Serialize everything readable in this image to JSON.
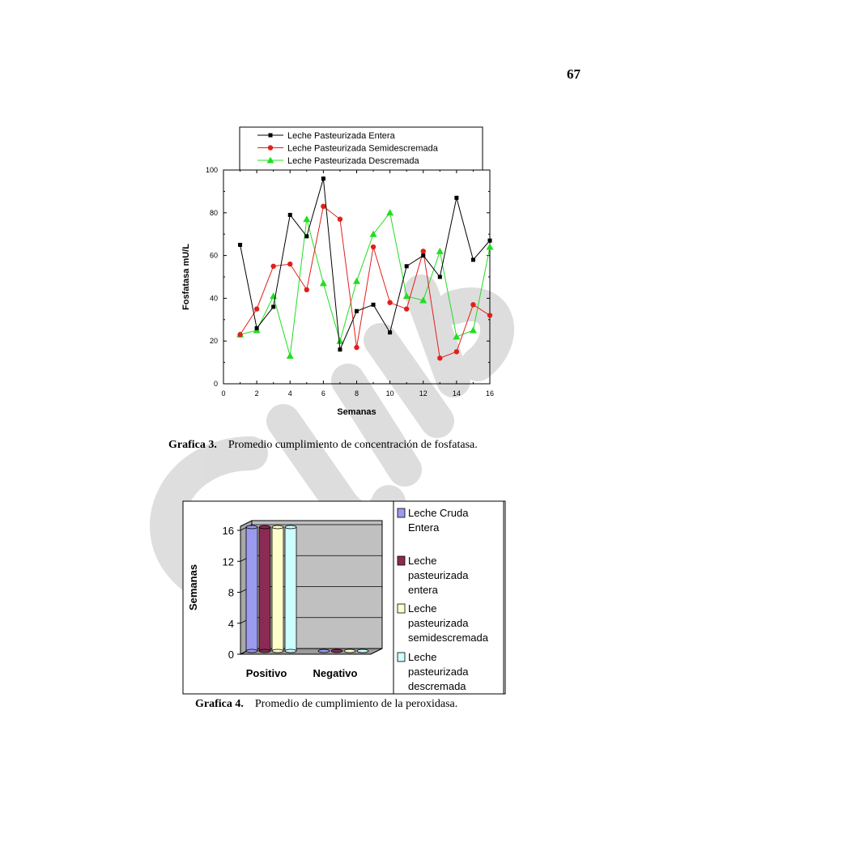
{
  "page": {
    "number": "67",
    "captions": [
      {
        "label": "Grafica 3.",
        "text": "Promedio cumplimiento de concentración de fosfatasa."
      },
      {
        "label": "Grafica 4.",
        "text": "Promedio de cumplimiento de la peroxidasa."
      }
    ]
  },
  "colors": {
    "entera": "#000000",
    "semidescremada": "#e0201a",
    "descremada": "#22dd22",
    "cruda_bar": "#9a9aee",
    "entera_bar": "#8b2a52",
    "semi_bar": "#ffffcc",
    "desc_bar": "#ccffff",
    "plot_bg": "#c0c0c0",
    "watermark": "#d8d8d8"
  },
  "chart_data": [
    {
      "type": "line",
      "title": "",
      "xlabel": "Semanas",
      "ylabel": "Fosfatasa mU/L",
      "xlim": [
        0,
        16
      ],
      "ylim": [
        0,
        100
      ],
      "xticks": [
        0,
        2,
        4,
        6,
        8,
        10,
        12,
        14,
        16
      ],
      "yticks": [
        0,
        20,
        40,
        60,
        80,
        100
      ],
      "legend_position": "top",
      "x": [
        1,
        2,
        3,
        4,
        5,
        6,
        7,
        8,
        9,
        10,
        11,
        12,
        13,
        14,
        15,
        16
      ],
      "series": [
        {
          "name": "Leche Pasteurizada Entera",
          "marker": "square",
          "color": "#000000",
          "values": [
            65,
            26,
            36,
            79,
            69,
            96,
            16,
            34,
            37,
            24,
            55,
            60,
            50,
            87,
            58,
            67
          ]
        },
        {
          "name": "Leche Pasteurizada Semidescremada",
          "marker": "circle",
          "color": "#e0201a",
          "values": [
            23,
            35,
            55,
            56,
            44,
            83,
            77,
            17,
            64,
            38,
            35,
            62,
            12,
            15,
            37,
            32
          ]
        },
        {
          "name": "Leche Pasteurizada Descremada",
          "marker": "triangle",
          "color": "#22dd22",
          "values": [
            23,
            25,
            41,
            13,
            77,
            47,
            20,
            48,
            70,
            80,
            41,
            39,
            62,
            22,
            25,
            64
          ]
        }
      ]
    },
    {
      "type": "bar",
      "title": "",
      "xlabel": "",
      "ylabel": "Semanas",
      "ylim": [
        0,
        16
      ],
      "yticks": [
        0,
        4,
        8,
        12,
        16
      ],
      "categories": [
        "Positivo",
        "Negativo"
      ],
      "legend_position": "right",
      "series": [
        {
          "name": "Leche Cruda Entera",
          "legend_lines": [
            "Leche Cruda",
            "Entera"
          ],
          "color": "#9a9aee",
          "values": [
            16,
            0
          ]
        },
        {
          "name": "Leche pasteurizada entera",
          "legend_lines": [
            "Leche",
            "pasteurizada",
            "entera"
          ],
          "color": "#8b2a52",
          "values": [
            16,
            0
          ]
        },
        {
          "name": "Leche pasteurizada semidescremada",
          "legend_lines": [
            "Leche",
            "pasteurizada",
            "semidescremada"
          ],
          "color": "#ffffcc",
          "values": [
            16,
            0
          ]
        },
        {
          "name": "Leche pasteurizada descremada",
          "legend_lines": [
            "Leche",
            "pasteurizada",
            "descremada"
          ],
          "color": "#ccffff",
          "values": [
            16,
            0
          ]
        }
      ]
    }
  ]
}
